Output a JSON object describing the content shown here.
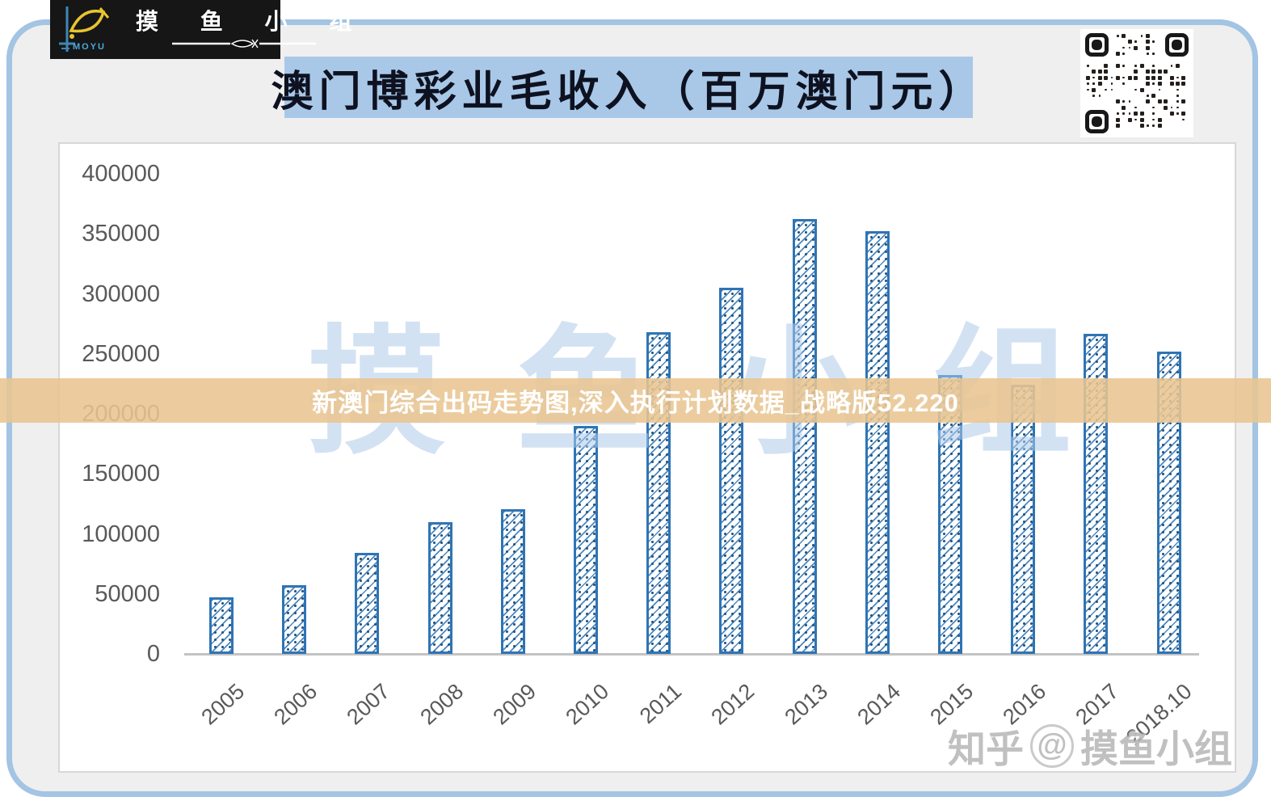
{
  "logo": {
    "brand_cn": "摸 鱼 小 组",
    "brand_en": "MOYU"
  },
  "title": "澳门博彩业毛收入（百万澳门元）",
  "overlay_banner": "新澳门综合出码走势图,深入执行计划数据_战略版52.220",
  "plot_watermark": "摸鱼小组",
  "corner_watermark": {
    "site": "知乎",
    "at": "@",
    "name": "摸鱼小组"
  },
  "chart_data": {
    "type": "bar",
    "title": "澳门博彩业毛收入（百万澳门元）",
    "categories": [
      "2005",
      "2006",
      "2007",
      "2008",
      "2009",
      "2010",
      "2011",
      "2012",
      "2013",
      "2014",
      "2015",
      "2016",
      "2017",
      "2018.10"
    ],
    "values": [
      47000,
      57500,
      84000,
      110000,
      120500,
      190000,
      268000,
      305000,
      362000,
      352000,
      232000,
      224000,
      267000,
      252000
    ],
    "xlabel": "",
    "ylabel": "",
    "ylim": [
      0,
      400000
    ],
    "yticks": [
      0,
      50000,
      100000,
      150000,
      200000,
      250000,
      300000,
      350000,
      400000
    ],
    "grid": false,
    "legend": "none",
    "bar_style": "diagonal-hatch",
    "bar_color": "#2e74b5"
  },
  "colors": {
    "frame_border": "#a3c4e3",
    "panel_bg": "#efefef",
    "title_bg": "#a9c8e8",
    "title_text": "#0e1220",
    "banner_bg": "#e9c591",
    "banner_text": "#ffffff",
    "bar_outline": "#2e74b5",
    "axis_text": "#595959",
    "logo_bg": "#161616"
  }
}
